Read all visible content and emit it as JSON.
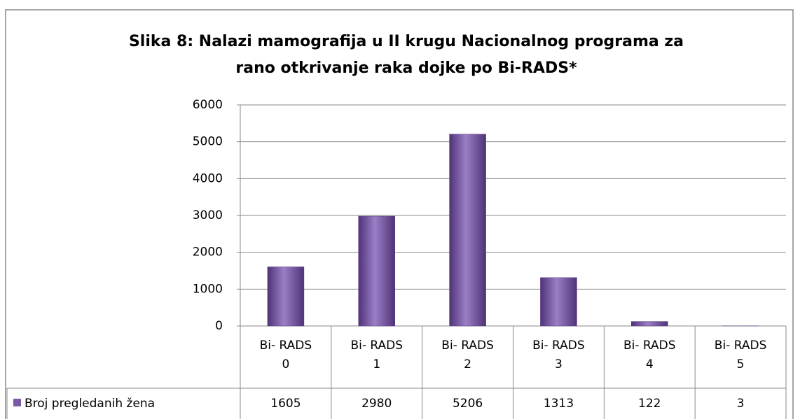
{
  "chart_data": {
    "type": "bar",
    "title": "Slika 8: Nalazi mamografija u II krugu Nacionalnog programa za",
    "subtitle": "rano otkrivanje raka dojke po Bi-RADS*",
    "categories": [
      "Bi- RADS 0",
      "Bi- RADS 1",
      "Bi- RADS 2",
      "Bi- RADS 3",
      "Bi- RADS 4",
      "Bi- RADS 5"
    ],
    "series": [
      {
        "name": "Broj pregledanih žena",
        "color": "#7a58a8",
        "values": [
          1605,
          2980,
          5206,
          1313,
          122,
          3
        ]
      }
    ],
    "ylim": [
      0,
      6000
    ],
    "yticks": [
      0,
      1000,
      2000,
      3000,
      4000,
      5000,
      6000
    ],
    "grid": true
  }
}
